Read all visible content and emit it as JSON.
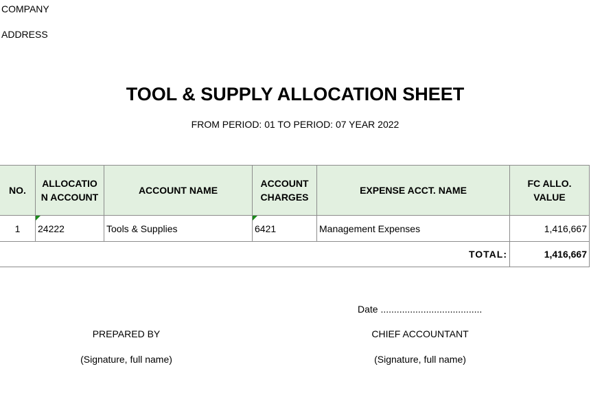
{
  "company_label": "COMPANY",
  "address_label": "ADDRESS",
  "title": "TOOL & SUPPLY ALLOCATION SHEET",
  "period": "FROM PERIOD: 01 TO PERIOD: 07 YEAR 2022",
  "table": {
    "headers": [
      "NO.",
      "ALLOCATIO N ACCOUNT",
      "ACCOUNT NAME",
      "ACCOUNT CHARGES",
      "EXPENSE ACCT. NAME",
      "FC ALLO. VALUE"
    ],
    "rows": [
      [
        "1",
        "24222",
        "Tools & Supplies",
        "6421",
        "Management Expenses",
        "1,416,667"
      ]
    ],
    "total_label": "TOTAL:",
    "total_value": "1,416,667"
  },
  "signatures": {
    "date": "Date ......................................",
    "prepared_by": "PREPARED BY",
    "prepared_note": "(Signature, full name)",
    "chief_accountant": "CHIEF ACCOUNTANT",
    "chief_note": "(Signature, full name)"
  },
  "colors": {
    "header_bg": "#e2f0e0",
    "border": "#8c8c8c",
    "indicator": "#1a8a1a"
  }
}
